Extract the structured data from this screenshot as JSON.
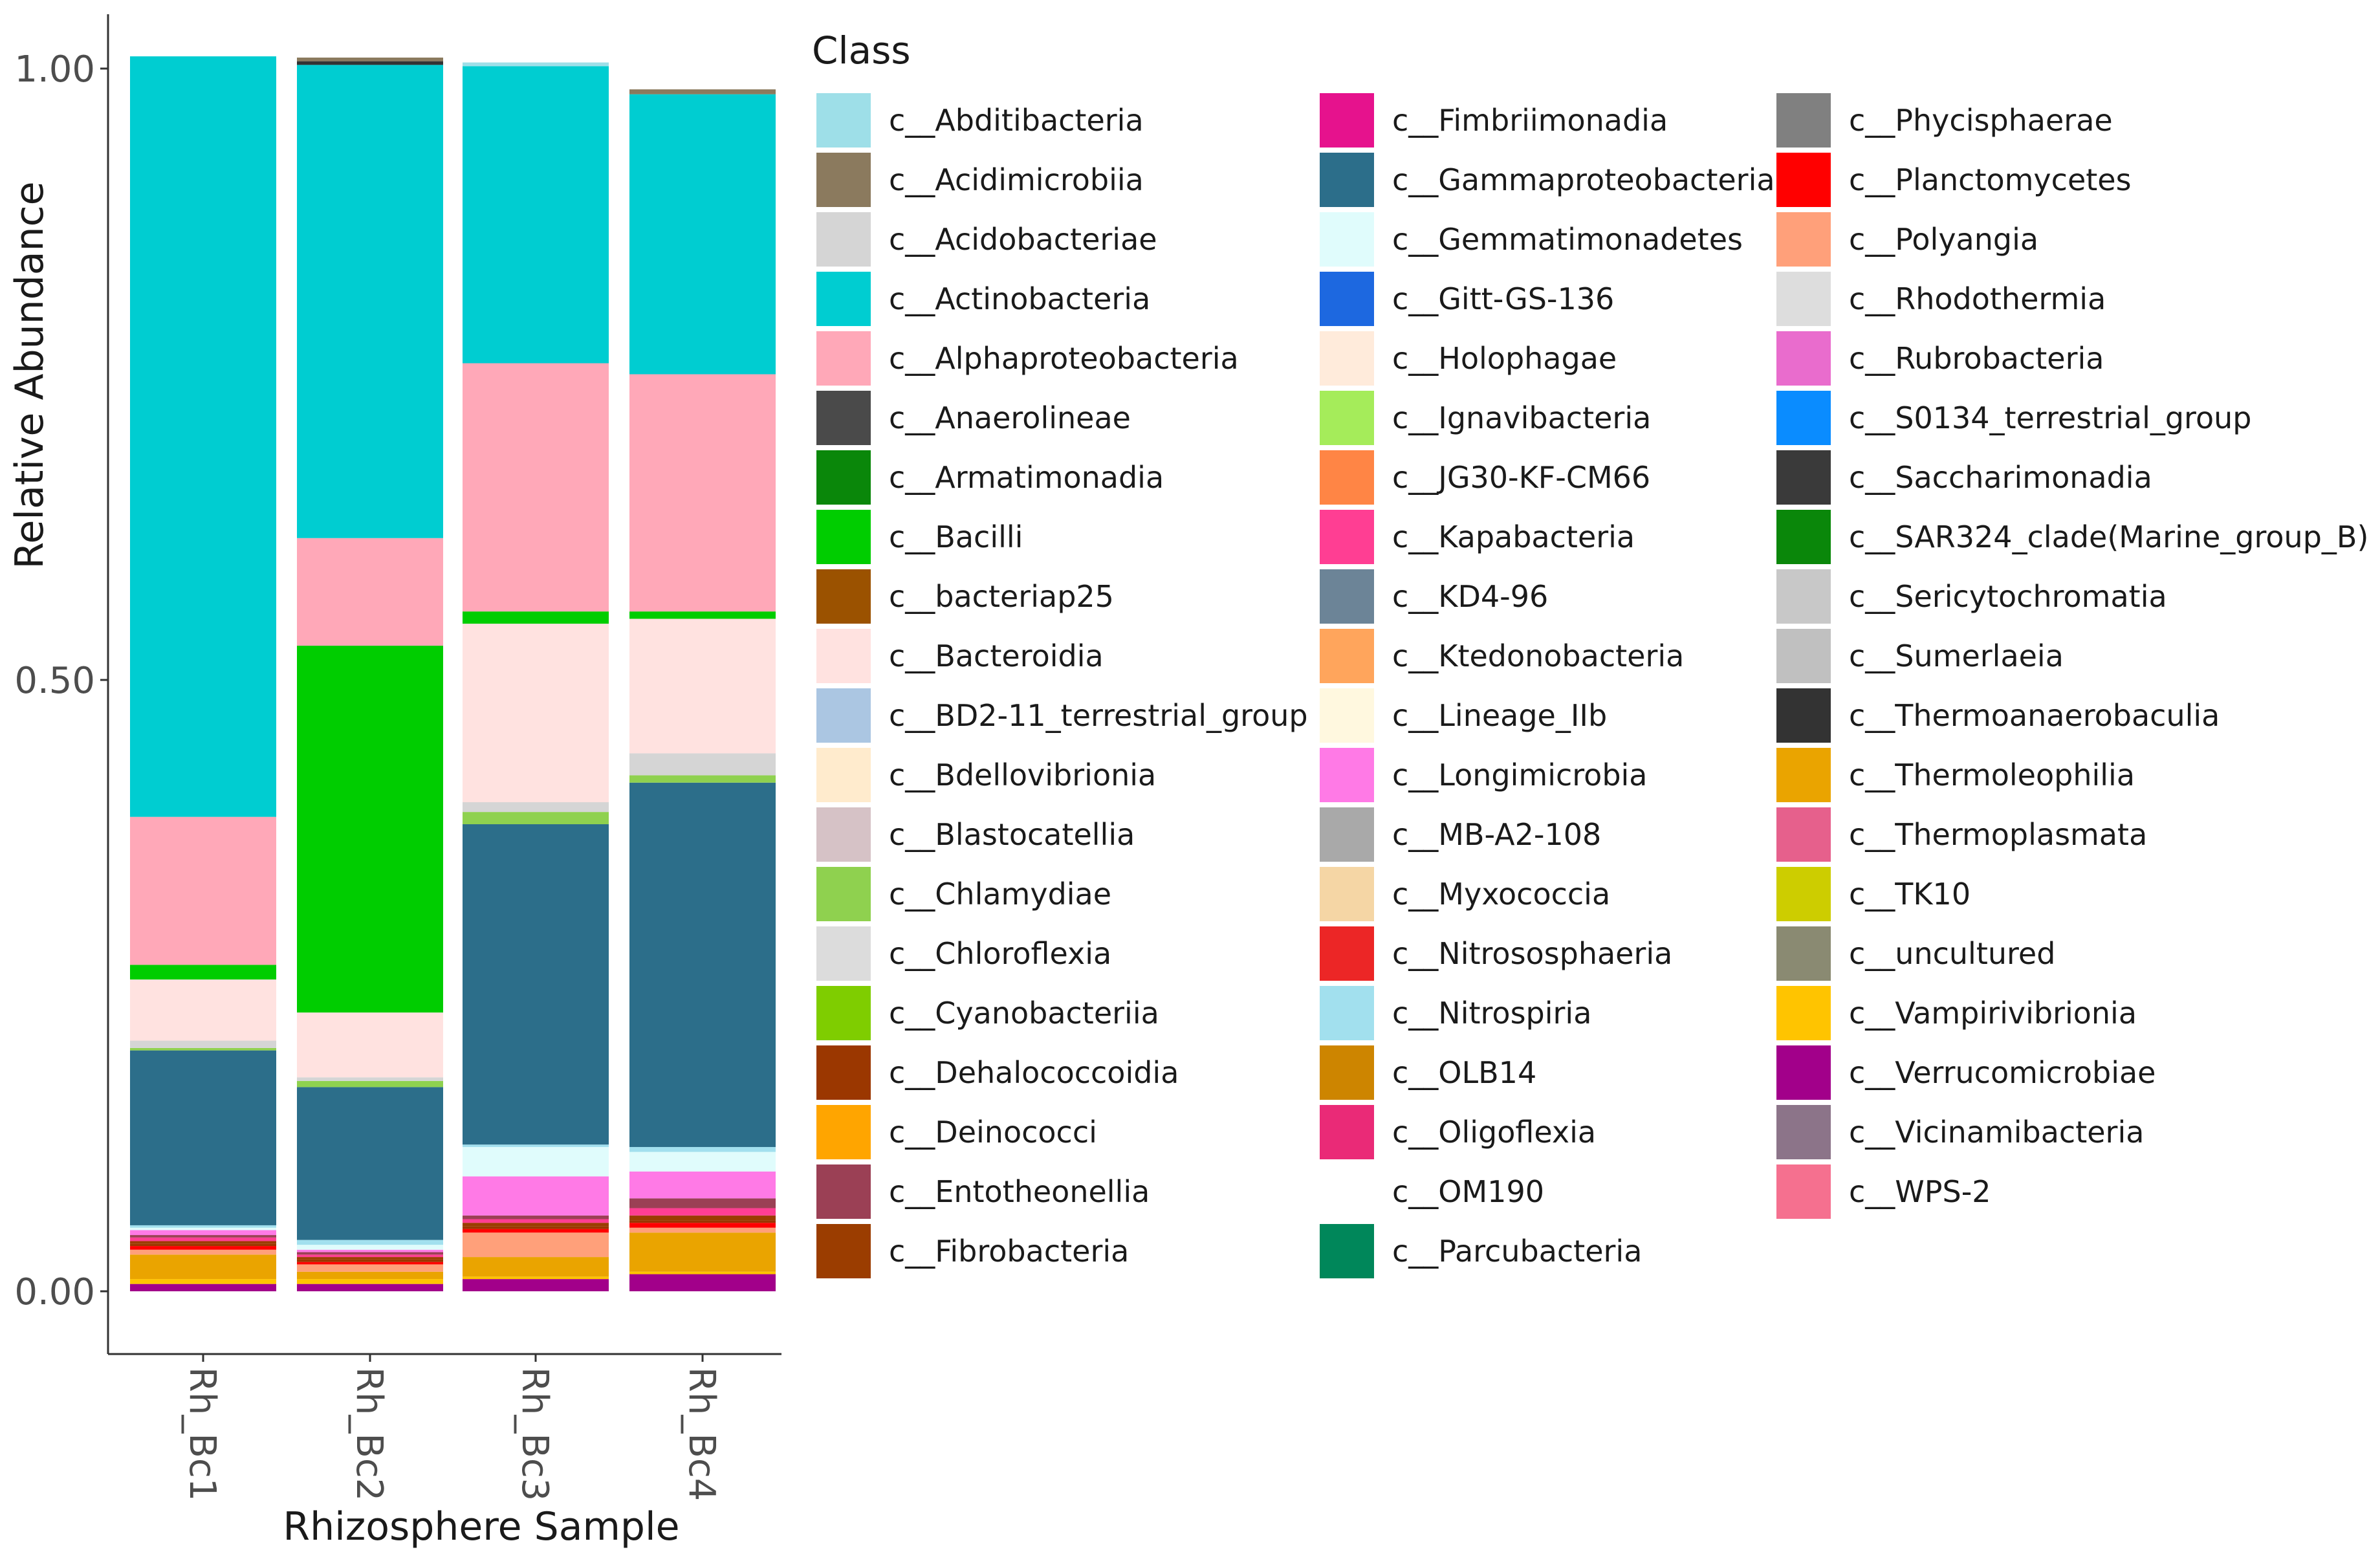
{
  "chart_data": {
    "type": "stacked-bar",
    "xlabel": "Rhizosphere Sample",
    "ylabel": "Relative Abundance",
    "ylim": [
      0,
      1
    ],
    "y_ticks": [
      "0.00",
      "0.50",
      "1.00"
    ],
    "y_tick_values": [
      0,
      0.5,
      1
    ],
    "categories": [
      "Rh_Bc1",
      "Rh_Bc2",
      "Rh_Bc3",
      "Rh_Bc4"
    ],
    "legend_title": "Class",
    "legend": [
      {
        "label": "c__Abditibacteria",
        "color": "#9edfe8"
      },
      {
        "label": "c__Acidimicrobiia",
        "color": "#8b7a5e"
      },
      {
        "label": "c__Acidobacteriae",
        "color": "#d5d5d5"
      },
      {
        "label": "c__Actinobacteria",
        "color": "#00cdd1"
      },
      {
        "label": "c__Alphaproteobacteria",
        "color": "#ffa8b8"
      },
      {
        "label": "c__Anaerolineae",
        "color": "#4a4a4a"
      },
      {
        "label": "c__Armatimonadia",
        "color": "#0a870a"
      },
      {
        "label": "c__Bacilli",
        "color": "#00cd00"
      },
      {
        "label": "c__bacteriap25",
        "color": "#9b5200"
      },
      {
        "label": "c__Bacteroidia",
        "color": "#ffe2e0"
      },
      {
        "label": "c__BD2-11_terrestrial_group",
        "color": "#abc6e2"
      },
      {
        "label": "c__Bdellovibrionia",
        "color": "#ffebcd"
      },
      {
        "label": "c__Blastocatellia",
        "color": "#d6c2c6"
      },
      {
        "label": "c__Chlamydiae",
        "color": "#8fd14f"
      },
      {
        "label": "c__Chloroflexia",
        "color": "#dcdcdc"
      },
      {
        "label": "c__Cyanobacteriia",
        "color": "#7fcd00"
      },
      {
        "label": "c__Dehalococcoidia",
        "color": "#9b3700"
      },
      {
        "label": "c__Deinococci",
        "color": "#ffa500"
      },
      {
        "label": "c__Entotheonellia",
        "color": "#9b4055"
      },
      {
        "label": "c__Fibrobacteria",
        "color": "#9b3d00"
      },
      {
        "label": "c__Fimbriimonadia",
        "color": "#e6128d"
      },
      {
        "label": "c__Gammaproteobacteria",
        "color": "#2c6e8a"
      },
      {
        "label": "c__Gemmatimonadetes",
        "color": "#e0fcfc"
      },
      {
        "label": "c__Gitt-GS-136",
        "color": "#1d68e0"
      },
      {
        "label": "c__Holophagae",
        "color": "#ffebdb"
      },
      {
        "label": "c__Ignavibacteria",
        "color": "#a5ec5a"
      },
      {
        "label": "c__JG30-KF-CM66",
        "color": "#ff8545"
      },
      {
        "label": "c__Kapabacteria",
        "color": "#ff3e93"
      },
      {
        "label": "c__KD4-96",
        "color": "#6c8497"
      },
      {
        "label": "c__Ktedonobacteria",
        "color": "#ffa55c"
      },
      {
        "label": "c__Lineage_IIb",
        "color": "#fff8df"
      },
      {
        "label": "c__Longimicrobia",
        "color": "#ff7ae6"
      },
      {
        "label": "c__MB-A2-108",
        "color": "#a9a9a9"
      },
      {
        "label": "c__Myxococcia",
        "color": "#f5d6a5"
      },
      {
        "label": "c__Nitrososphaeria",
        "color": "#ec2626"
      },
      {
        "label": "c__Nitrospiria",
        "color": "#a2e0ee"
      },
      {
        "label": "c__OLB14",
        "color": "#cd8500"
      },
      {
        "label": "c__Oligoflexia",
        "color": "#ea2a77"
      },
      {
        "label": "c__OM190",
        "color": "#ffffff"
      },
      {
        "label": "c__Parcubacteria",
        "color": "#00875a"
      },
      {
        "label": "c__Phycisphaerae",
        "color": "#808080"
      },
      {
        "label": "c__Planctomycetes",
        "color": "#ff0000"
      },
      {
        "label": "c__Polyangia",
        "color": "#ffa07a"
      },
      {
        "label": "c__Rhodothermia",
        "color": "#dddddd"
      },
      {
        "label": "c__Rubrobacteria",
        "color": "#e96ccd"
      },
      {
        "label": "c__S0134_terrestrial_group",
        "color": "#0a8cff"
      },
      {
        "label": "c__Saccharimonadia",
        "color": "#3a3a3a"
      },
      {
        "label": "c__SAR324_clade(Marine_group_B)",
        "color": "#0a870a"
      },
      {
        "label": "c__Sericytochromatia",
        "color": "#c8c8c8"
      },
      {
        "label": "c__Sumerlaeia",
        "color": "#c0c0c0"
      },
      {
        "label": "c__Thermoanaerobaculia",
        "color": "#333333"
      },
      {
        "label": "c__Thermoleophilia",
        "color": "#eaa400"
      },
      {
        "label": "c__Thermoplasmata",
        "color": "#e6608c"
      },
      {
        "label": "c__TK10",
        "color": "#cdcd00"
      },
      {
        "label": "c__uncultured",
        "color": "#8a8a72"
      },
      {
        "label": "c__Vampirivibrionia",
        "color": "#ffc400"
      },
      {
        "label": "c__Verrucomicrobiae",
        "color": "#a2008a"
      },
      {
        "label": "c__Vicinamibacteria",
        "color": "#8c7489"
      },
      {
        "label": "c__WPS-2",
        "color": "#f5708f"
      }
    ],
    "series": [
      {
        "name": "c__Verrucomicrobiae",
        "color": "#a2008a",
        "values": [
          0.006,
          0.006,
          0.01,
          0.014
        ]
      },
      {
        "name": "c__Vampirivibrionia",
        "color": "#ffc400",
        "values": [
          0.004,
          0.004,
          0.002,
          0.002
        ]
      },
      {
        "name": "c__Thermoleophilia",
        "color": "#eaa400",
        "values": [
          0.02,
          0.006,
          0.016,
          0.032
        ]
      },
      {
        "name": "c__Polyangia",
        "color": "#ffa07a",
        "values": [
          0.004,
          0.006,
          0.02,
          0.004
        ]
      },
      {
        "name": "c__Planctomycetes",
        "color": "#ff0000",
        "values": [
          0.003,
          0.002,
          0.003,
          0.004
        ]
      },
      {
        "name": "c__Dehalococcoidia",
        "color": "#9b3700",
        "values": [
          0.002,
          0.002,
          0.002,
          0.002
        ]
      },
      {
        "name": "c__Fibrobacteria",
        "color": "#9b3d00",
        "values": [
          0.002,
          0.002,
          0.003,
          0.004
        ]
      },
      {
        "name": "c__Kapabacteria",
        "color": "#ff3e93",
        "values": [
          0.003,
          0.002,
          0.003,
          0.006
        ]
      },
      {
        "name": "c__Entotheonellia",
        "color": "#9b4055",
        "values": [
          0.002,
          0.002,
          0.003,
          0.008
        ]
      },
      {
        "name": "c__Longimicrobia",
        "color": "#ff7ae6",
        "values": [
          0.004,
          0.002,
          0.032,
          0.022
        ]
      },
      {
        "name": "c__Gemmatimonadetes",
        "color": "#e0fcfc",
        "values": [
          0.002,
          0.004,
          0.024,
          0.016
        ]
      },
      {
        "name": "c__Nitrospiria",
        "color": "#a2e0ee",
        "values": [
          0.002,
          0.004,
          0.002,
          0.004
        ]
      },
      {
        "name": "c__Gammaproteobacteria",
        "color": "#2c6e8a",
        "values": [
          0.143,
          0.125,
          0.262,
          0.298
        ]
      },
      {
        "name": "c__Chlamydiae",
        "color": "#8fd14f",
        "values": [
          0.002,
          0.005,
          0.01,
          0.006
        ]
      },
      {
        "name": "c__Acidobacteriae",
        "color": "#d5d5d5",
        "values": [
          0.006,
          0.003,
          0.008,
          0.018
        ]
      },
      {
        "name": "c__Bacteroidia",
        "color": "#ffe2e0",
        "values": [
          0.05,
          0.053,
          0.146,
          0.11
        ]
      },
      {
        "name": "c__Bacilli",
        "color": "#00cd00",
        "values": [
          0.012,
          0.3,
          0.01,
          0.006
        ]
      },
      {
        "name": "c__Alphaproteobacteria",
        "color": "#ffa8b8",
        "values": [
          0.121,
          0.088,
          0.203,
          0.194
        ]
      },
      {
        "name": "c__Actinobacteria",
        "color": "#00cdd1",
        "values": [
          0.622,
          0.387,
          0.243,
          0.229
        ]
      },
      {
        "name": "c__Thermoanaerobaculia",
        "color": "#333333",
        "values": [
          0.0,
          0.003,
          0.0,
          0.0
        ]
      },
      {
        "name": "c__Acidimicrobiia",
        "color": "#8b7a5e",
        "values": [
          0.0,
          0.003,
          0.0,
          0.004
        ]
      },
      {
        "name": "c__Abditibacteria",
        "color": "#9edfe8",
        "values": [
          0.0,
          0.0,
          0.003,
          0.0
        ]
      }
    ]
  }
}
